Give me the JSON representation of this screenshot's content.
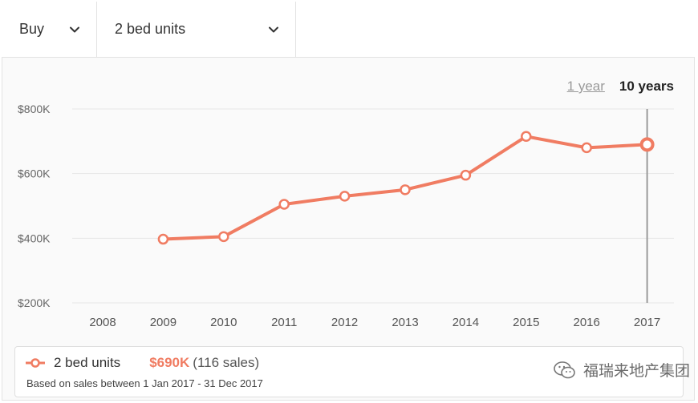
{
  "filters": {
    "mode": "Buy",
    "property_type": "2 bed units"
  },
  "range": {
    "option_1": "1 year",
    "option_2": "10 years",
    "selected": "10 years"
  },
  "colors": {
    "series": "#f07c62",
    "marker_line": "#9a9a9a"
  },
  "chart_data": {
    "type": "line",
    "title": "",
    "xlabel": "",
    "ylabel": "",
    "x": [
      "2008",
      "2009",
      "2010",
      "2011",
      "2012",
      "2013",
      "2014",
      "2015",
      "2016",
      "2017"
    ],
    "y_ticks": [
      "$200K",
      "$400K",
      "$600K",
      "$800K"
    ],
    "ylim": [
      200000,
      800000
    ],
    "grid": true,
    "series": [
      {
        "name": "2 bed units",
        "values": [
          null,
          397000,
          405000,
          505000,
          530000,
          550000,
          595000,
          715000,
          680000,
          690000
        ]
      }
    ],
    "highlight_x": "2017"
  },
  "legend": {
    "name": "2 bed units",
    "value": "$690K",
    "count": "(116 sales)",
    "note": "Based on sales between 1 Jan 2017 - 31 Dec 2017"
  },
  "watermark": {
    "icon": "wechat-icon",
    "text": "福瑞来地产集团"
  }
}
